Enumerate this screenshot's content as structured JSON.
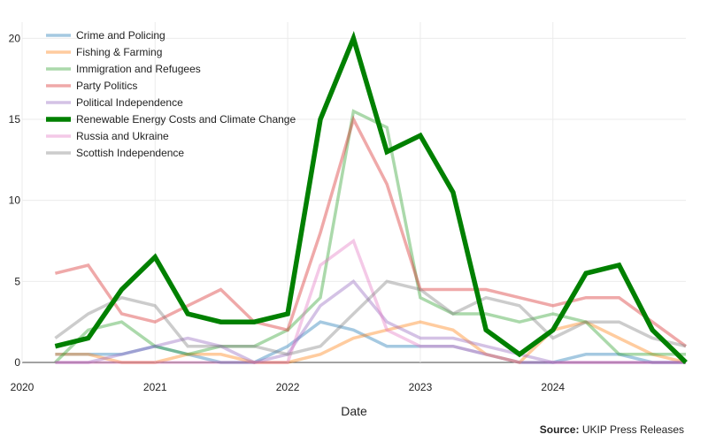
{
  "chart_data": {
    "type": "line",
    "xlabel": "Date",
    "ylabel": "",
    "ylim": [
      0,
      21
    ],
    "yticks": [
      0,
      5,
      10,
      15,
      20
    ],
    "xticks": [
      "2020",
      "2021",
      "2022",
      "2023",
      "2024"
    ],
    "grid": true,
    "legend_position": "top-left",
    "x": [
      "2020-04",
      "2020-07",
      "2020-10",
      "2021-01",
      "2021-04",
      "2021-07",
      "2021-10",
      "2022-01",
      "2022-04",
      "2022-07",
      "2022-10",
      "2023-01",
      "2023-04",
      "2023-07",
      "2023-10",
      "2024-01",
      "2024-04",
      "2024-07",
      "2024-10",
      "2025-01"
    ],
    "series": [
      {
        "name": "Crime and Policing",
        "color": "#1f77b4",
        "highlight": false,
        "values": [
          0.5,
          0.5,
          0.5,
          1,
          0.5,
          0,
          0,
          1,
          2.5,
          2,
          1,
          1,
          1,
          0.5,
          0,
          0,
          0.5,
          0.5,
          0,
          0
        ]
      },
      {
        "name": "Fishing & Farming",
        "color": "#ff7f0e",
        "highlight": false,
        "values": [
          0.5,
          0.5,
          0,
          0,
          0.5,
          0.5,
          0,
          0,
          0.5,
          1.5,
          2,
          2.5,
          2,
          0.5,
          0,
          2,
          2.5,
          1.5,
          0.5,
          0
        ]
      },
      {
        "name": "Immigration and Refugees",
        "color": "#2ca02c",
        "highlight": false,
        "values": [
          0,
          2,
          2.5,
          1,
          0.5,
          1,
          1,
          2,
          4,
          15.5,
          14.5,
          4,
          3,
          3,
          2.5,
          3,
          2.5,
          0.5,
          0.5,
          0.5
        ]
      },
      {
        "name": "Party Politics",
        "color": "#d62728",
        "highlight": false,
        "values": [
          5.5,
          6,
          3,
          2.5,
          3.5,
          4.5,
          2.5,
          2,
          8,
          15,
          11,
          4.5,
          4.5,
          4.5,
          4,
          3.5,
          4,
          4,
          2.5,
          1
        ]
      },
      {
        "name": "Political Independence",
        "color": "#9467bd",
        "highlight": false,
        "values": [
          0,
          0,
          0.5,
          1,
          1.5,
          1,
          0,
          0.5,
          3.5,
          5,
          2.5,
          1.5,
          1.5,
          1,
          0.5,
          0,
          0,
          0,
          0,
          0
        ]
      },
      {
        "name": "Renewable Energy Costs and Climate Change",
        "color": "#008000",
        "highlight": true,
        "values": [
          1,
          1.5,
          4.5,
          6.5,
          3,
          2.5,
          2.5,
          3,
          15,
          20,
          13,
          14,
          10.5,
          2,
          0.5,
          2,
          5.5,
          6,
          2,
          0
        ]
      },
      {
        "name": "Russia and Ukraine",
        "color": "#e377c2",
        "highlight": false,
        "values": [
          0,
          0,
          0,
          0,
          0,
          0,
          0,
          0,
          6,
          7.5,
          2,
          1,
          1,
          0.5,
          0,
          0,
          0,
          0,
          0,
          0
        ]
      },
      {
        "name": "Scottish Independence",
        "color": "#7f7f7f",
        "highlight": false,
        "values": [
          1.5,
          3,
          4,
          3.5,
          1,
          1,
          1,
          0.5,
          1,
          3,
          5,
          4.5,
          3,
          4,
          3.5,
          1.5,
          2.5,
          2.5,
          1.5,
          1
        ]
      }
    ]
  },
  "source": {
    "label": "Source:",
    "text": "UKIP Press Releases"
  }
}
